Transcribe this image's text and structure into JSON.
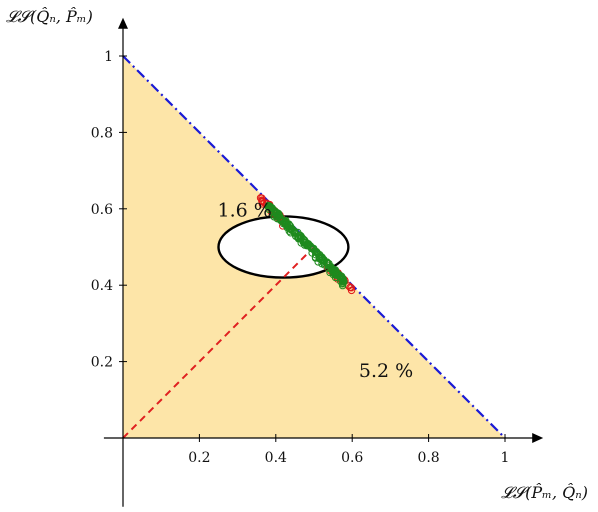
{
  "chart_data": {
    "type": "scatter",
    "xlabel": "𝓛𝓢(P̂ₘ, Q̂ₙ)",
    "ylabel": "𝓛𝓢(Q̂ₙ, P̂ₘ)",
    "xlim": [
      -0.05,
      1.1
    ],
    "ylim": [
      -0.18,
      1.1
    ],
    "x_ticks": [
      0.2,
      0.4,
      0.6,
      0.8,
      1
    ],
    "y_ticks": [
      0.2,
      0.4,
      0.6,
      0.8,
      1
    ],
    "x_tick_labels": [
      "0.2",
      "0.4",
      "0.6",
      "0.8",
      "1"
    ],
    "y_tick_labels": [
      "0.2",
      "0.4",
      "0.6",
      "0.8",
      "1"
    ],
    "grid": false,
    "feasible_region": {
      "vertices": [
        [
          0,
          0
        ],
        [
          1,
          0
        ],
        [
          0,
          1
        ]
      ],
      "fill": "#fde5a8"
    },
    "boundary_line": {
      "from": [
        0,
        1
      ],
      "to": [
        1,
        0
      ],
      "style": "dash-dot",
      "color": "#1a1ad6"
    },
    "diagonal_line": {
      "from": [
        0,
        0
      ],
      "to": [
        0.5,
        0.5
      ],
      "style": "dashed",
      "color": "#e02020"
    },
    "ellipse": {
      "center": [
        0.42,
        0.5
      ],
      "rx": 0.17,
      "ry": 0.08,
      "color": "#000000",
      "fill": "#ffffff"
    },
    "series": [
      {
        "color": "#1e8a1e",
        "marker": "circle-open",
        "x_range": [
          0.38,
          0.58
        ],
        "count": 180
      },
      {
        "color": "#e01818",
        "marker": "circle-open",
        "x_range": [
          0.36,
          0.6
        ],
        "count": 60
      }
    ],
    "annotations": [
      {
        "text": "1.6 %",
        "x": 0.24,
        "y": 0.59
      },
      {
        "text": "5.2 %",
        "x": 0.61,
        "y": 0.17
      }
    ]
  }
}
